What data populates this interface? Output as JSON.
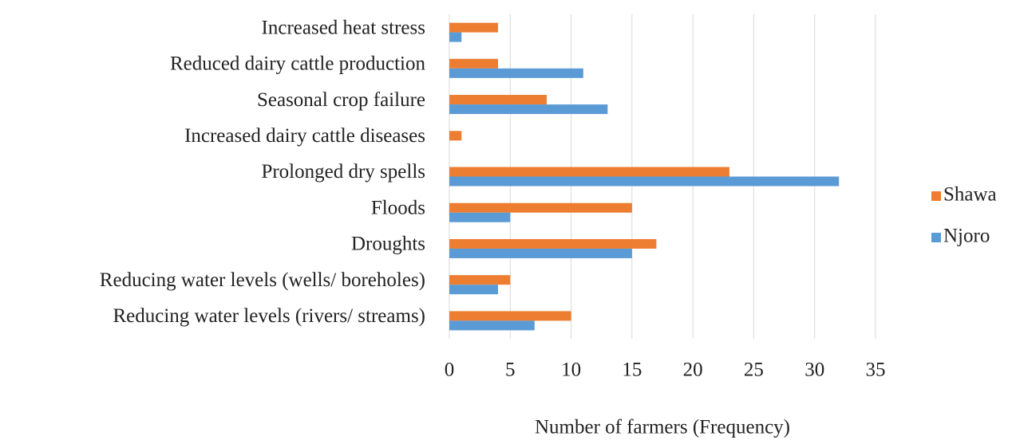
{
  "chart_data": {
    "type": "barh",
    "xlabel": "Number of farmers (Frequency)",
    "categories": [
      "Increased heat stress",
      "Reduced dairy cattle production",
      "Seasonal crop failure",
      "Increased dairy cattle diseases",
      "Prolonged dry spells",
      "Floods",
      "Droughts",
      "Reducing water levels (wells/ boreholes)",
      "Reducing water levels (rivers/ streams)"
    ],
    "series": [
      {
        "name": "Shawa",
        "color": "#ed7d31",
        "values": [
          4,
          4,
          8,
          1,
          23,
          15,
          17,
          5,
          10
        ]
      },
      {
        "name": "Njoro",
        "color": "#5b9bd5",
        "values": [
          1,
          11,
          13,
          0,
          32,
          5,
          15,
          4,
          7
        ]
      }
    ],
    "xlim": [
      0,
      35
    ],
    "xticks": [
      0,
      5,
      10,
      15,
      20,
      25,
      30,
      35
    ],
    "grid": true,
    "legend": "right"
  }
}
